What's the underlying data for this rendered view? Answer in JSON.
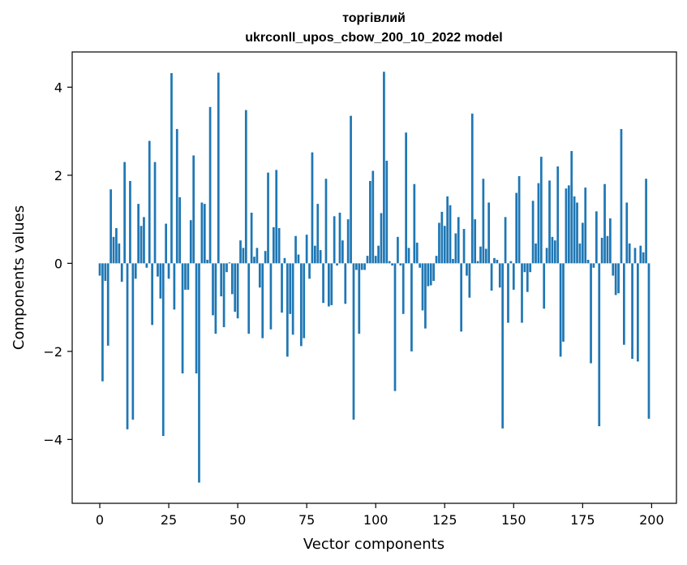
{
  "chart_data": {
    "type": "bar",
    "title_line1": "торгівлий",
    "title_line2": "ukrconll_upos_cbow_200_10_2022 model",
    "xlabel": "Vector components",
    "ylabel": "Components values",
    "xlim": [
      -10,
      209
    ],
    "ylim": [
      -5.45,
      4.8
    ],
    "xticks": [
      0,
      25,
      50,
      75,
      100,
      125,
      150,
      175,
      200
    ],
    "xtick_labels": [
      "0",
      "25",
      "50",
      "75",
      "100",
      "125",
      "150",
      "175",
      "200"
    ],
    "yticks": [
      -4,
      -2,
      0,
      2,
      4
    ],
    "ytick_labels": [
      "−4",
      "−2",
      "0",
      "2",
      "4"
    ],
    "bar_color": "#1f77b4",
    "grid": false,
    "legend": false,
    "x": [
      0,
      1,
      2,
      3,
      4,
      5,
      6,
      7,
      8,
      9,
      10,
      11,
      12,
      13,
      14,
      15,
      16,
      17,
      18,
      19,
      20,
      21,
      22,
      23,
      24,
      25,
      26,
      27,
      28,
      29,
      30,
      31,
      32,
      33,
      34,
      35,
      36,
      37,
      38,
      39,
      40,
      41,
      42,
      43,
      44,
      45,
      46,
      47,
      48,
      49,
      50,
      51,
      52,
      53,
      54,
      55,
      56,
      57,
      58,
      59,
      60,
      61,
      62,
      63,
      64,
      65,
      66,
      67,
      68,
      69,
      70,
      71,
      72,
      73,
      74,
      75,
      76,
      77,
      78,
      79,
      80,
      81,
      82,
      83,
      84,
      85,
      86,
      87,
      88,
      89,
      90,
      91,
      92,
      93,
      94,
      95,
      96,
      97,
      98,
      99,
      100,
      101,
      102,
      103,
      104,
      105,
      106,
      107,
      108,
      109,
      110,
      111,
      112,
      113,
      114,
      115,
      116,
      117,
      118,
      119,
      120,
      121,
      122,
      123,
      124,
      125,
      126,
      127,
      128,
      129,
      130,
      131,
      132,
      133,
      134,
      135,
      136,
      137,
      138,
      139,
      140,
      141,
      142,
      143,
      144,
      145,
      146,
      147,
      148,
      149,
      150,
      151,
      152,
      153,
      154,
      155,
      156,
      157,
      158,
      159,
      160,
      161,
      162,
      163,
      164,
      165,
      166,
      167,
      168,
      169,
      170,
      171,
      172,
      173,
      174,
      175,
      176,
      177,
      178,
      179,
      180,
      181,
      182,
      183,
      184,
      185,
      186,
      187,
      188,
      189,
      190,
      191,
      192,
      193,
      194,
      195,
      196,
      197,
      198,
      199
    ],
    "values": [
      -0.28,
      -2.68,
      -0.4,
      -1.87,
      1.68,
      0.6,
      0.8,
      0.45,
      -0.42,
      2.3,
      -3.77,
      1.87,
      -3.55,
      -0.35,
      1.35,
      0.85,
      1.05,
      -0.1,
      2.78,
      -1.4,
      2.3,
      -0.3,
      -0.8,
      -3.92,
      0.9,
      -0.35,
      4.32,
      -1.05,
      3.05,
      1.5,
      -2.5,
      -0.6,
      -0.6,
      0.98,
      2.45,
      -2.5,
      -4.98,
      1.38,
      1.35,
      0.08,
      3.55,
      -1.18,
      -1.6,
      4.33,
      -0.75,
      -1.45,
      -0.2,
      0.02,
      -0.7,
      -1.1,
      -1.25,
      0.52,
      0.35,
      3.48,
      -1.6,
      1.15,
      0.15,
      0.35,
      -0.55,
      -1.7,
      0.28,
      2.06,
      -1.5,
      0.82,
      2.12,
      0.8,
      -1.12,
      0.12,
      -2.12,
      -1.15,
      -1.62,
      0.62,
      0.2,
      -1.88,
      -1.7,
      0.65,
      -0.35,
      2.52,
      0.4,
      1.35,
      0.3,
      -0.9,
      1.92,
      -0.98,
      -0.95,
      1.07,
      -0.05,
      1.15,
      0.52,
      -0.92,
      1.0,
      3.35,
      -3.55,
      -0.15,
      -1.6,
      -0.15,
      -0.15,
      0.17,
      1.87,
      2.1,
      0.17,
      0.4,
      1.14,
      4.35,
      2.33,
      0.05,
      -0.05,
      -2.9,
      0.6,
      -0.05,
      -1.15,
      2.97,
      0.35,
      -2.0,
      1.8,
      0.47,
      -0.1,
      -1.07,
      -1.48,
      -0.52,
      -0.5,
      -0.4,
      0.17,
      0.92,
      1.17,
      0.85,
      1.52,
      1.32,
      0.1,
      0.68,
      1.05,
      -1.55,
      0.78,
      -0.28,
      -0.78,
      3.4,
      1.0,
      0.05,
      0.38,
      1.92,
      0.33,
      1.38,
      -0.62,
      0.12,
      0.08,
      -0.55,
      -3.75,
      1.05,
      -1.35,
      0.05,
      -0.6,
      1.6,
      1.98,
      -1.35,
      -0.2,
      -0.65,
      -0.2,
      1.42,
      0.45,
      1.82,
      2.42,
      -1.03,
      0.35,
      1.88,
      0.6,
      0.52,
      2.2,
      -2.12,
      -1.78,
      1.7,
      1.77,
      2.55,
      1.52,
      1.38,
      0.45,
      0.92,
      1.72,
      0.08,
      -2.27,
      -0.1,
      1.18,
      -3.7,
      0.58,
      1.8,
      0.62,
      1.02,
      -0.28,
      -0.72,
      -0.68,
      3.05,
      -1.85,
      1.38,
      0.45,
      -2.17,
      0.35,
      -2.23,
      0.4,
      0.25,
      1.92,
      -3.53
    ]
  }
}
